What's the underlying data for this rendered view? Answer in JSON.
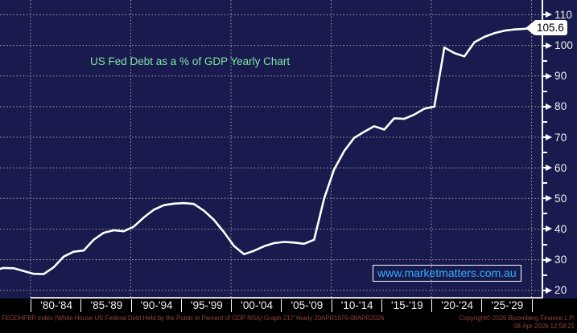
{
  "title": {
    "text": "US Fed Debt as a % of GDP Yearly Chart"
  },
  "watermark": {
    "text": "www.marketmatters.com.au"
  },
  "last_value_tag": {
    "label": "105.6"
  },
  "y_axis": {
    "major_ticks": [
      110,
      100,
      90,
      80,
      70,
      60,
      50,
      40,
      30,
      20
    ],
    "minor_ticks": [
      105,
      95,
      85,
      75,
      65,
      55,
      45,
      35,
      25
    ]
  },
  "x_axis": {
    "bin_labels": [
      "'80-'84",
      "'85-'89",
      "'90-'94",
      "'95-'99",
      "'00-'04",
      "'05-'09",
      "'10-'14",
      "'15-'19",
      "'20-'24",
      "'25-'29"
    ],
    "gridline_years": [
      1980,
      1990,
      2000,
      2010,
      2020,
      2030
    ]
  },
  "footer": {
    "description": "FEDDHPBP Index (White House US Federal Debt Held by the Public in Percent of GDP NSA) Graph 217 Yearly 20APR1976-08APR2026",
    "copyright": "Copyright© 2026 Bloomberg Finance L.P.",
    "timestamp": "08-Apr-2026 12:58:21"
  },
  "colors": {
    "background": "#191a4e",
    "grid": "#a09c92",
    "series_line": "#ffffff",
    "title_text": "#7fe8a2",
    "watermark_text": "#2fb3f7",
    "footer_text": "#93413a",
    "strip_background": "#000000",
    "tag_background": "#ffffff",
    "tag_text": "#000000"
  },
  "chart_data": {
    "type": "line",
    "title": "US Fed Debt as a % of GDP Yearly Chart",
    "xlabel": "",
    "ylabel": "Federal Debt Held by the Public in Percent of GDP",
    "ylim": [
      20,
      110
    ],
    "xlim": [
      1976,
      2031
    ],
    "grid": "dotted",
    "legend": "none",
    "last_value": 105.6,
    "x": [
      1976,
      1977,
      1978,
      1979,
      1980,
      1981,
      1982,
      1983,
      1984,
      1985,
      1986,
      1987,
      1988,
      1989,
      1990,
      1991,
      1992,
      1993,
      1994,
      1995,
      1996,
      1997,
      1998,
      1999,
      2000,
      2001,
      2002,
      2003,
      2004,
      2005,
      2006,
      2007,
      2008,
      2009,
      2010,
      2011,
      2012,
      2013,
      2014,
      2015,
      2016,
      2017,
      2018,
      2019,
      2020,
      2021,
      2022,
      2023,
      2024,
      2025,
      2026,
      2027,
      2028,
      2029,
      2030
    ],
    "values": [
      26.5,
      27.3,
      27.2,
      26.3,
      25.4,
      25.3,
      27.5,
      31.0,
      32.6,
      33.0,
      36.5,
      38.8,
      39.6,
      39.3,
      40.8,
      43.8,
      46.3,
      47.8,
      48.3,
      48.5,
      48.2,
      46.0,
      43.0,
      39.0,
      34.5,
      31.8,
      32.9,
      34.4,
      35.4,
      35.8,
      35.6,
      35.2,
      36.5,
      50.0,
      59.5,
      65.5,
      69.8,
      71.8,
      73.6,
      72.5,
      76.2,
      76.0,
      77.4,
      79.3,
      80.0,
      99.3,
      97.5,
      96.4,
      101.0,
      102.8,
      104.0,
      104.8,
      105.2,
      105.4,
      105.6
    ]
  }
}
